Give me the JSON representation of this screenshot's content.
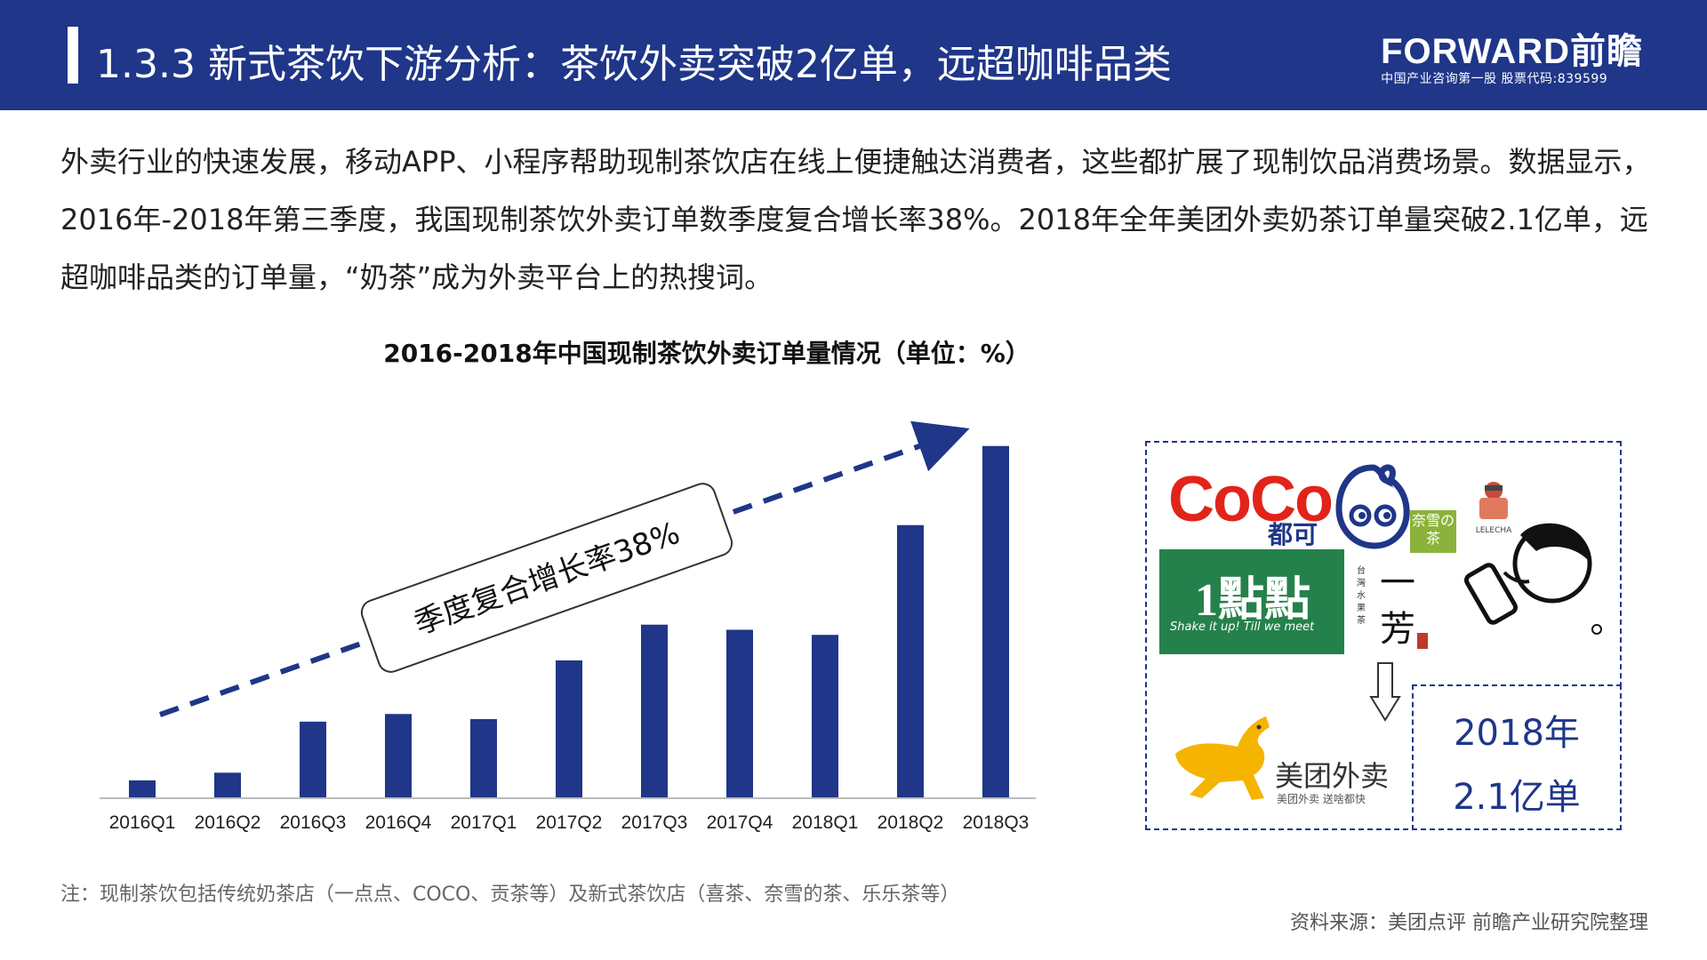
{
  "header": {
    "title": "1.3.3 新式茶饮下游分析：茶饮外卖突破2亿单，远超咖啡品类",
    "logo_text": "FORWARD前瞻",
    "logo_sub": "中国产业咨询第一股 股票代码:839599"
  },
  "intro": "外卖行业的快速发展，移动APP、小程序帮助现制茶饮店在线上便捷触达消费者，这些都扩展了现制饮品消费场景。数据显示，2016年-2018年第三季度，我国现制茶饮外卖订单数季度复合增长率38%。2018年全年美团外卖奶茶订单量突破2.1亿单，远超咖啡品类的订单量，“奶茶”成为外卖平台上的热搜词。",
  "chart_data": {
    "type": "bar",
    "title": "2016-2018年中国现制茶饮外卖订单量情况（单位：%）",
    "categories": [
      "2016Q1",
      "2016Q2",
      "2016Q3",
      "2016Q4",
      "2017Q1",
      "2017Q2",
      "2017Q3",
      "2017Q4",
      "2018Q1",
      "2018Q2",
      "2018Q3"
    ],
    "values": [
      7,
      10,
      30,
      33,
      31,
      54,
      68,
      66,
      64,
      107,
      138
    ],
    "ylim": [
      0,
      140
    ],
    "annotation": "季度复合增长率38%",
    "bar_color": "#1f3689",
    "grid": false
  },
  "brands": {
    "coco": "CoCo",
    "coco_cn": "都可",
    "nayuki": "奈雪の茶",
    "lelecha": "LELECHA",
    "yidiandian": "1點點",
    "yidiandian_sub": "Shake it up! Till we meet",
    "yifang_side": "台灣水果茶",
    "yifang": "一芳",
    "meituan_name": "美团外卖",
    "meituan_sub": "美团外卖  送啥都快",
    "stat_year": "2018年",
    "stat_amount": "2.1亿单"
  },
  "note": "注：现制茶饮包括传统奶茶店（一点点、COCO、贡茶等）及新式茶饮店（喜茶、奈雪的茶、乐乐茶等）",
  "source": "资料来源：美团点评 前瞻产业研究院整理"
}
